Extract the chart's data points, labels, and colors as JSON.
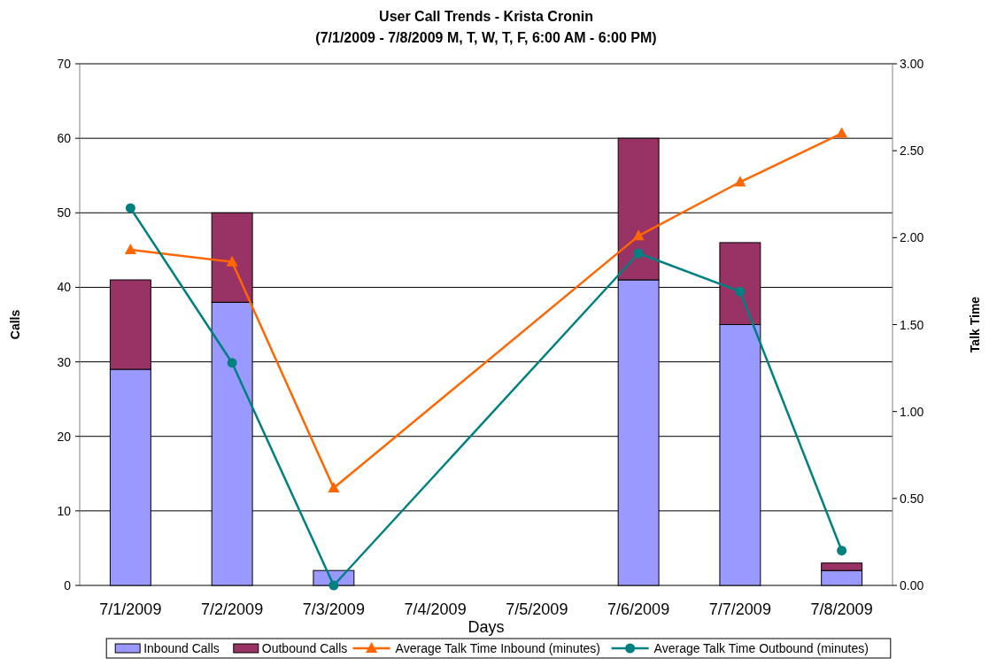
{
  "chart_data": {
    "type": "bar",
    "title": "User Call Trends - Krista Cronin",
    "subtitle": "(7/1/2009 - 7/8/2009 M, T, W, T, F, 6:00 AM - 6:00 PM)",
    "xlabel": "Days",
    "ylabel": "Calls",
    "y2label": "Talk Time",
    "categories": [
      "7/1/2009",
      "7/2/2009",
      "7/3/2009",
      "7/4/2009",
      "7/5/2009",
      "7/6/2009",
      "7/7/2009",
      "7/8/2009"
    ],
    "stacked": true,
    "series": [
      {
        "name": "Inbound Calls",
        "color": "#9999ff",
        "values": [
          29,
          38,
          2,
          null,
          null,
          41,
          35,
          2
        ]
      },
      {
        "name": "Outbound Calls",
        "color": "#993366",
        "values": [
          12,
          12,
          0,
          null,
          null,
          19,
          11,
          1
        ]
      },
      {
        "name": "Average Talk Time Inbound (minutes)",
        "type": "line",
        "axis": "y2",
        "marker": "triangle",
        "color": "#ff6600",
        "values": [
          1.93,
          1.86,
          0.56,
          null,
          null,
          2.01,
          2.32,
          2.6
        ]
      },
      {
        "name": "Average Talk Time Outbound (minutes)",
        "type": "line",
        "axis": "y2",
        "marker": "circle",
        "color": "#008080",
        "values": [
          2.17,
          1.28,
          0,
          null,
          null,
          1.91,
          1.69,
          0.2
        ]
      }
    ],
    "ylim": [
      0,
      70
    ],
    "yticks": [
      0,
      10,
      20,
      30,
      40,
      50,
      60,
      70
    ],
    "y2lim": [
      0,
      3
    ],
    "y2ticks": [
      {
        "value": 0,
        "label": "0.00"
      },
      {
        "value": 0.5,
        "label": "0.50"
      },
      {
        "value": 1,
        "label": "1.00"
      },
      {
        "value": 1.5,
        "label": "1.50"
      },
      {
        "value": 2,
        "label": "2.00"
      },
      {
        "value": 2.5,
        "label": "2.50"
      },
      {
        "value": 3,
        "label": "3.00"
      }
    ],
    "grid": "y",
    "legend": "bottom"
  }
}
